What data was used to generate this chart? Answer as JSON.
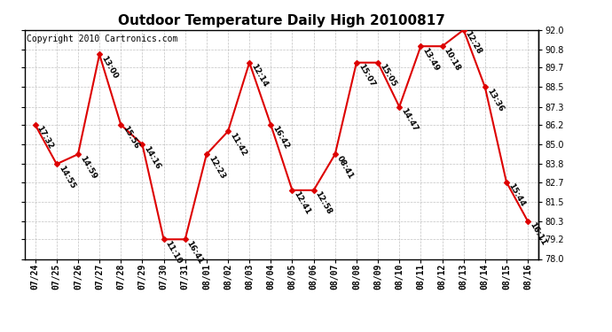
{
  "title": "Outdoor Temperature Daily High 20100817",
  "copyright": "Copyright 2010 Cartronics.com",
  "dates": [
    "07/24",
    "07/25",
    "07/26",
    "07/27",
    "07/28",
    "07/29",
    "07/30",
    "07/31",
    "08/01",
    "08/02",
    "08/03",
    "08/04",
    "08/05",
    "08/06",
    "08/07",
    "08/08",
    "08/09",
    "08/10",
    "08/11",
    "08/12",
    "08/13",
    "08/14",
    "08/15",
    "08/16"
  ],
  "values": [
    86.2,
    83.8,
    84.4,
    90.5,
    86.2,
    85.0,
    79.2,
    79.2,
    84.4,
    85.8,
    90.0,
    86.2,
    82.2,
    82.2,
    84.4,
    90.0,
    90.0,
    87.3,
    91.0,
    91.0,
    92.0,
    88.5,
    82.7,
    80.3
  ],
  "labels": [
    "17:32",
    "14:55",
    "14:59",
    "13:00",
    "15:56",
    "14:16",
    "11:10",
    "16:41",
    "12:23",
    "11:42",
    "12:14",
    "16:42",
    "12:41",
    "12:58",
    "08:41",
    "15:07",
    "15:05",
    "14:47",
    "13:49",
    "10:18",
    "12:28",
    "13:36",
    "15:44",
    "16:11"
  ],
  "ylim_min": 78.0,
  "ylim_max": 92.0,
  "yticks": [
    78.0,
    79.2,
    80.3,
    81.5,
    82.7,
    83.8,
    85.0,
    86.2,
    87.3,
    88.5,
    89.7,
    90.8,
    92.0
  ],
  "line_color": "#dd0000",
  "marker_color": "#dd0000",
  "bg_color": "#ffffff",
  "grid_color": "#bbbbbb",
  "title_fontsize": 11,
  "label_fontsize": 6.5,
  "axis_fontsize": 7,
  "copyright_fontsize": 7
}
